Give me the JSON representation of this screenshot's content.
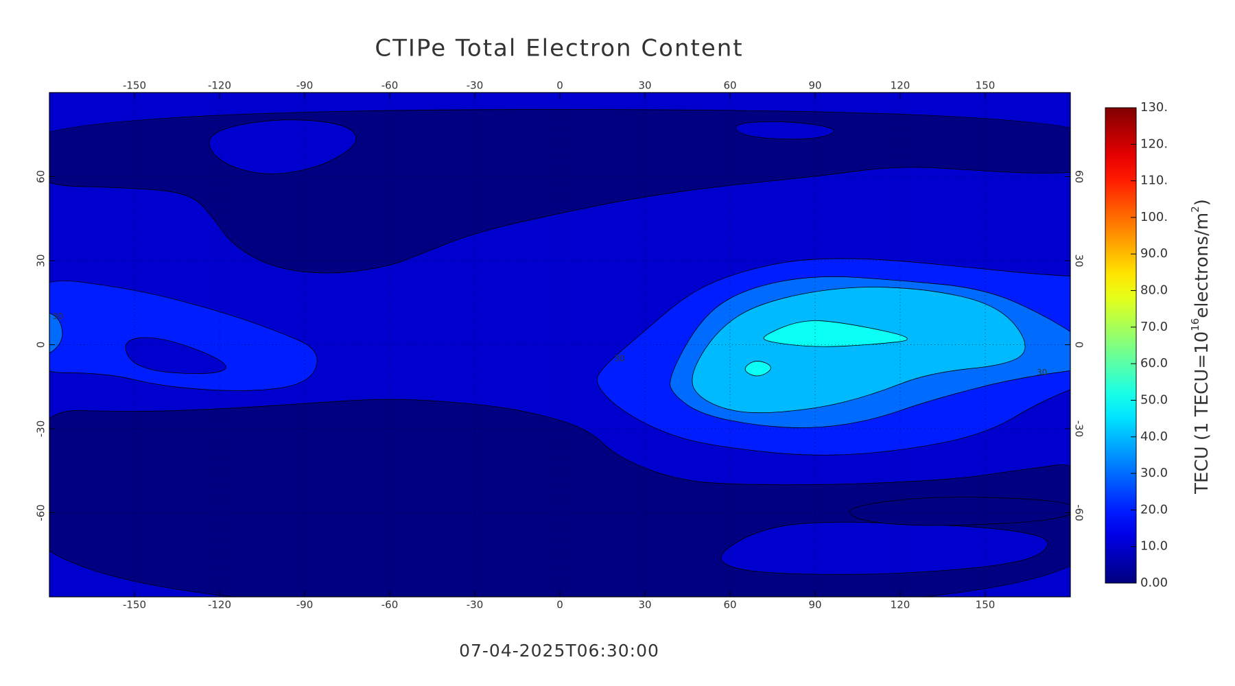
{
  "chart_data": {
    "type": "map",
    "title": "CTIPe Total Electron Content",
    "timestamp": "07-04-2025T06:30:00",
    "xlim": [
      -180,
      180
    ],
    "xticks": [
      -150,
      -120,
      -90,
      -60,
      -30,
      0,
      30,
      60,
      90,
      120,
      150
    ],
    "ylim": [
      -90,
      90
    ],
    "yticks": [
      -60,
      -30,
      0,
      30,
      60
    ],
    "grid": true,
    "colormap": "jet",
    "levels": [
      0,
      10,
      20,
      30,
      40,
      50
    ],
    "colorbar": {
      "label": [
        "TECU (1 TECU=10",
        "16",
        "electrons/m",
        "2",
        ")"
      ],
      "lim": [
        0,
        130
      ],
      "ticks": [
        {
          "value": 0,
          "label": "0.00"
        },
        {
          "value": 10,
          "label": "10.0"
        },
        {
          "value": 20,
          "label": "20.0"
        },
        {
          "value": 30,
          "label": "30.0"
        },
        {
          "value": 40,
          "label": "40.0"
        },
        {
          "value": 50,
          "label": "50.0"
        },
        {
          "value": 60,
          "label": "60.0"
        },
        {
          "value": 70,
          "label": "70.0"
        },
        {
          "value": 80,
          "label": "80.0"
        },
        {
          "value": 90,
          "label": "90.0"
        },
        {
          "value": 100,
          "label": "100."
        },
        {
          "value": 110,
          "label": "110."
        },
        {
          "value": 120,
          "label": "120."
        },
        {
          "value": 130,
          "label": "130."
        }
      ]
    }
  }
}
